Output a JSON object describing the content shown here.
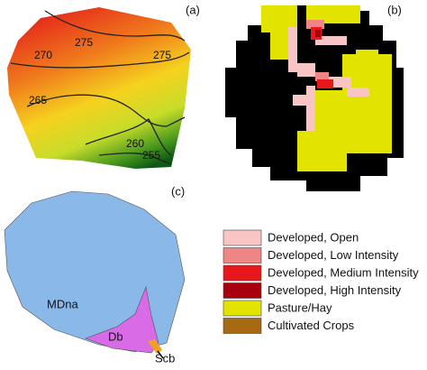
{
  "panels": [
    {
      "label": "(a)",
      "contour_labels": [
        "275",
        "270",
        "275",
        "265",
        "260",
        "255"
      ]
    },
    {
      "label": "(b)"
    },
    {
      "label": "(c)",
      "soil_labels": [
        "MDna",
        "Db",
        "Scb"
      ]
    }
  ],
  "legend": [
    {
      "label": "Developed, Open",
      "color": "#f8c4c4"
    },
    {
      "label": "Developed, Low Intensity",
      "color": "#ef8585"
    },
    {
      "label": "Developed, Medium Intensity",
      "color": "#e8171b"
    },
    {
      "label": "Developed, High Intensity",
      "color": "#a8000f"
    },
    {
      "label": "Pasture/Hay",
      "color": "#e3e300"
    },
    {
      "label": "Cultivated Crops",
      "color": "#a56a12"
    }
  ]
}
